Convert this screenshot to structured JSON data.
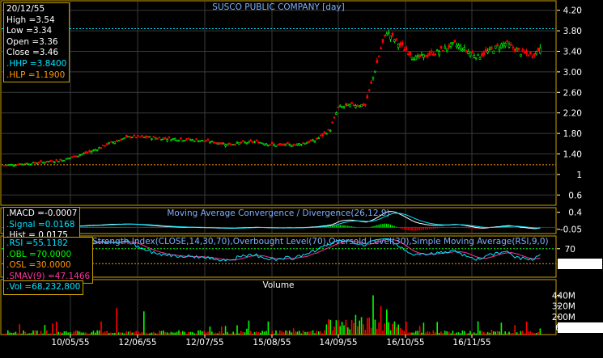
{
  "main": {
    "title": "SUSCO PUBLIC COMPANY [day]",
    "y_ticks": [
      "4.20",
      "3.80",
      "3.40",
      "3.00",
      "2.60",
      "2.20",
      "1.80",
      "1.40",
      "1",
      "0.6"
    ],
    "hhp_value": 3.84,
    "hlp_value": 1.19,
    "info": {
      "date": "20/12/55",
      "high": "High  =3.54",
      "low": "Low   =3.34",
      "open": "Open  =3.36",
      "close": "Close  =3.46",
      "hhp": ".HHP  =3.8400",
      "hlp": ".HLP  =1.1900"
    }
  },
  "macd": {
    "title": "Moving Average Convergence / Divergence(26,12,9)",
    "y_ticks": [
      "0.4",
      "-0.05"
    ],
    "info": {
      "macd": ".MACD =-0.0007",
      "signal": ".Signal =0.0168",
      "hist": ".Hist = 0.0175"
    }
  },
  "rsi": {
    "title": "Relative Strength Index(CLOSE,14,30,70),Overbought Level(70),Oversold Level(30),Simple Moving Average(RSI,9,0)",
    "y_tick": "70",
    "value_badge": "55.1182",
    "info": {
      "rsi": ".RSI  =55.1182",
      "obl": ".OBL  =70.0000",
      "osl": ".OSL  =30.0000",
      "smav": ".SMAV(9)  =47.1466"
    }
  },
  "volume": {
    "title": "Volume",
    "y_ticks": [
      "440M",
      "320M",
      "200M"
    ],
    "value_badge": "68,232,800",
    "info": {
      "vol": ".Vol  =68,232,800"
    }
  },
  "x_ticks": [
    "10/05/55",
    "12/06/55",
    "12/07/55",
    "15/08/55",
    "14/09/55",
    "16/10/55",
    "16/11/55"
  ],
  "colors": {
    "up": "#00ff00",
    "down": "#ff0000",
    "grid": "#3a3a3a",
    "frame": "#c8a000",
    "hhp": "#00e5ff",
    "hlp": "#ff9900",
    "macd_line": "#ffffff",
    "signal_line": "#00e5ff",
    "rsi_line": "#00e5ff",
    "smav_line": "#ff3399"
  },
  "chart_data": [
    {
      "type": "candlestick",
      "title": "SUSCO PUBLIC COMPANY [day]",
      "x_labels": [
        "10/05/55",
        "12/06/55",
        "12/07/55",
        "15/08/55",
        "14/09/55",
        "16/10/55",
        "16/11/55"
      ],
      "ylim": [
        0.4,
        4.4
      ],
      "key_levels": {
        "HHP": 3.84,
        "HLP": 1.19
      },
      "anchors": [
        {
          "i": 0,
          "close": 1.18
        },
        {
          "i": 15,
          "close": 1.22
        },
        {
          "i": 30,
          "close": 1.28
        },
        {
          "i": 45,
          "close": 1.45
        },
        {
          "i": 55,
          "close": 1.62
        },
        {
          "i": 65,
          "close": 1.74
        },
        {
          "i": 80,
          "close": 1.71
        },
        {
          "i": 100,
          "close": 1.67
        },
        {
          "i": 115,
          "close": 1.59
        },
        {
          "i": 130,
          "close": 1.64
        },
        {
          "i": 140,
          "close": 1.57
        },
        {
          "i": 150,
          "close": 1.58
        },
        {
          "i": 160,
          "close": 1.66
        },
        {
          "i": 168,
          "close": 1.88
        },
        {
          "i": 172,
          "close": 2.3
        },
        {
          "i": 180,
          "close": 2.36
        },
        {
          "i": 186,
          "close": 2.35
        },
        {
          "i": 190,
          "close": 2.9
        },
        {
          "i": 194,
          "close": 3.45
        },
        {
          "i": 197,
          "close": 3.78
        },
        {
          "i": 204,
          "close": 3.52
        },
        {
          "i": 212,
          "close": 3.26
        },
        {
          "i": 222,
          "close": 3.37
        },
        {
          "i": 232,
          "close": 3.54
        },
        {
          "i": 244,
          "close": 3.3
        },
        {
          "i": 258,
          "close": 3.56
        },
        {
          "i": 266,
          "close": 3.38
        },
        {
          "i": 272,
          "close": 3.32
        },
        {
          "i": 276,
          "close": 3.46
        }
      ]
    },
    {
      "type": "line",
      "title": "Moving Average Convergence / Divergence(26,12,9)",
      "series": [
        {
          "name": "MACD",
          "last": -0.0007
        },
        {
          "name": "Signal",
          "last": 0.0168
        },
        {
          "name": "Hist",
          "last": 0.0175
        }
      ]
    },
    {
      "type": "line",
      "title": "Relative Strength Index(CLOSE,14,30,70),Overbought Level(70),Oversold Level(30),Simple Moving Average(RSI,9,0)",
      "levels": {
        "OBL": 70,
        "OSL": 30
      },
      "series": [
        {
          "name": "RSI",
          "last": 55.1182
        },
        {
          "name": "SMAV(9)",
          "last": 47.1466
        }
      ]
    },
    {
      "type": "bar",
      "title": "Volume",
      "last": 68232800,
      "spikes": [
        {
          "i": 58,
          "value": 300000000
        },
        {
          "i": 72,
          "value": 260000000
        },
        {
          "i": 190,
          "value": 440000000
        },
        {
          "i": 194,
          "value": 320000000
        },
        {
          "i": 197,
          "value": 280000000
        },
        {
          "i": 181,
          "value": 220000000
        },
        {
          "i": 172,
          "value": 160000000
        }
      ]
    }
  ]
}
